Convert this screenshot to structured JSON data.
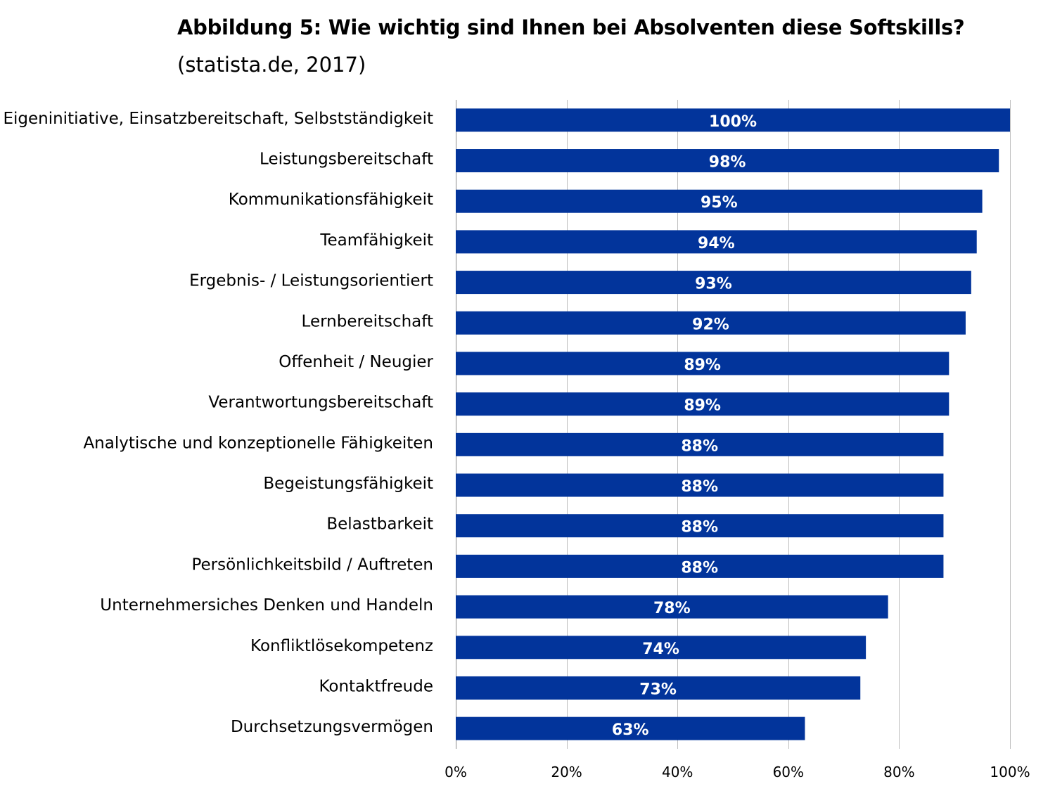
{
  "chart_data": {
    "type": "bar",
    "orientation": "horizontal",
    "title": "Abbildung 5: Wie wichtig sind Ihnen bei Absolventen diese Softskills?",
    "subtitle": "(statista.de, 2017)",
    "categories": [
      "Eigeninitiative, Einsatzbereitschaft, Selbstständigkeit",
      "Leistungsbereitschaft",
      "Kommunikationsfähigkeit",
      "Teamfähigkeit",
      "Ergebnis- / Leistungsorientiert",
      "Lernbereitschaft",
      "Offenheit / Neugier",
      "Verantwortungsbereitschaft",
      "Analytische und konzeptionelle Fähigkeiten",
      "Begeistungsfähigkeit",
      "Belastbarkeit",
      "Persönlichkeitsbild / Auftreten",
      "Unternehmersiches Denken und Handeln",
      "Konfliktlösekompetenz",
      "Kontaktfreude",
      "Durchsetzungsvermögen"
    ],
    "values": [
      100,
      98,
      95,
      94,
      93,
      92,
      89,
      89,
      88,
      88,
      88,
      88,
      78,
      74,
      73,
      63
    ],
    "data_labels": [
      "100%",
      "98%",
      "95%",
      "94%",
      "93%",
      "92%",
      "89%",
      "89%",
      "88%",
      "88%",
      "88%",
      "88%",
      "78%",
      "74%",
      "73%",
      "63%"
    ],
    "xlim": [
      0,
      100
    ],
    "x_ticks": [
      0,
      20,
      40,
      60,
      80,
      100
    ],
    "x_tick_labels": [
      "0%",
      "20%",
      "40%",
      "60%",
      "80%",
      "100%"
    ],
    "grid": "vertical",
    "legend": "none",
    "colors": {
      "bar": "#02349B",
      "grid": "#BFBFBF",
      "label": "#FFFFFF"
    }
  }
}
